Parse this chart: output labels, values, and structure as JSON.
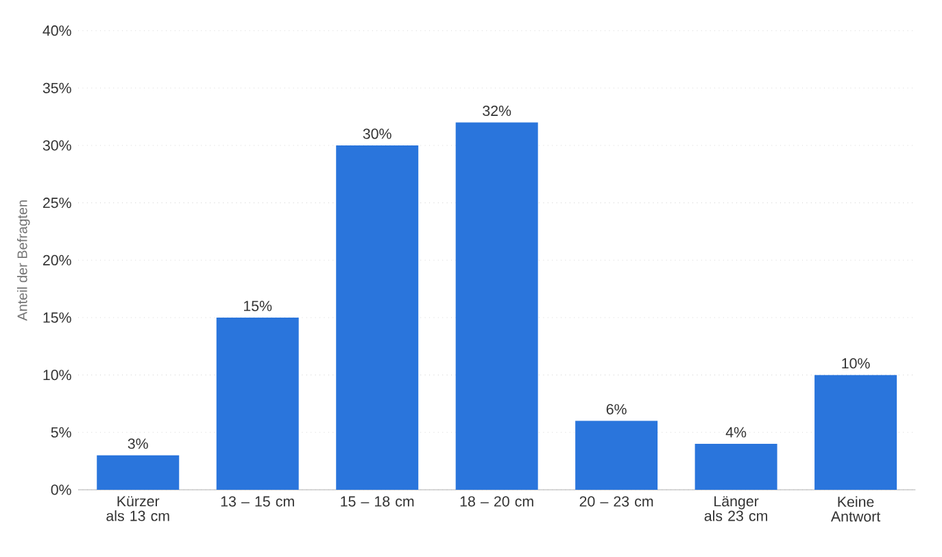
{
  "chart_data": {
    "type": "bar",
    "ylabel": "Anteil der Befragten",
    "categories": [
      "Kürzer als 13 cm",
      "13 – 15 cm",
      "15 – 18 cm",
      "18 – 20 cm",
      "20 – 23 cm",
      "Länger als 23 cm",
      "Keine Antwort"
    ],
    "values": [
      3,
      15,
      30,
      32,
      6,
      4,
      10
    ],
    "value_labels": [
      "3%",
      "15%",
      "30%",
      "32%",
      "6%",
      "4%",
      "10%"
    ],
    "color": "#2a75dc",
    "ylim": [
      0,
      40
    ],
    "yticks": [
      {
        "value": 0,
        "label": "0%"
      },
      {
        "value": 5,
        "label": "5%"
      },
      {
        "value": 10,
        "label": "10%"
      },
      {
        "value": 15,
        "label": "15%"
      },
      {
        "value": 20,
        "label": "20%"
      },
      {
        "value": 25,
        "label": "25%"
      },
      {
        "value": 30,
        "label": "30%"
      },
      {
        "value": 35,
        "label": "35%"
      },
      {
        "value": 40,
        "label": "40%"
      }
    ],
    "grid": "y"
  }
}
